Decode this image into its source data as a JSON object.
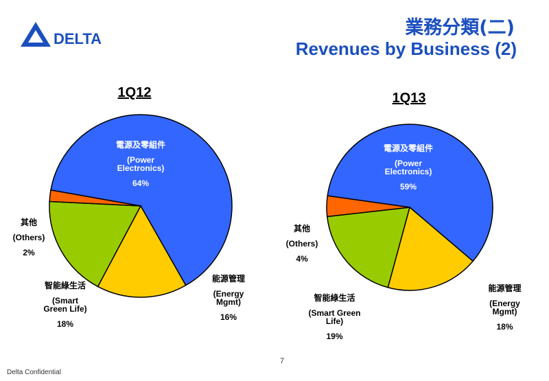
{
  "header": {
    "logo_text": "DELTA",
    "title_zh": "業務分類(二)",
    "title_en": "Revenues by Business (2)"
  },
  "colors": {
    "brand_blue": "#1a4fbf",
    "power": "#3366ff",
    "energy": "#ffcc00",
    "green": "#99cc00",
    "others": "#ff6600"
  },
  "chart_data": [
    {
      "type": "pie",
      "title": "1Q12",
      "slices": [
        {
          "zh": "電源及零組件",
          "en1": "(Power",
          "en2": "Electronics)",
          "label": "64%",
          "value": 64
        },
        {
          "zh": "能源管理",
          "en1": "(Energy",
          "en2": "Mgmt)",
          "label": "16%",
          "value": 16
        },
        {
          "zh": "智能綠生活",
          "en1": "(Smart",
          "en2": "Green Life)",
          "label": "18%",
          "value": 18
        },
        {
          "zh": "其他",
          "en1": "(Others)",
          "en2": "",
          "label": "2%",
          "value": 2
        }
      ]
    },
    {
      "type": "pie",
      "title": "1Q13",
      "slices": [
        {
          "zh": "電源及零組件",
          "en1": "(Power",
          "en2": "Electronics)",
          "label": "59%",
          "value": 59
        },
        {
          "zh": "能源管理",
          "en1": "(Energy",
          "en2": "Mgmt)",
          "label": "18%",
          "value": 18
        },
        {
          "zh": "智能綠生活",
          "en1": "(Smart Green",
          "en2": "Life)",
          "label": "19%",
          "value": 19
        },
        {
          "zh": "其他",
          "en1": "(Others)",
          "en2": "",
          "label": "4%",
          "value": 4
        }
      ]
    }
  ],
  "footer": {
    "page_number": "7",
    "confidential": "Delta Confidential"
  }
}
